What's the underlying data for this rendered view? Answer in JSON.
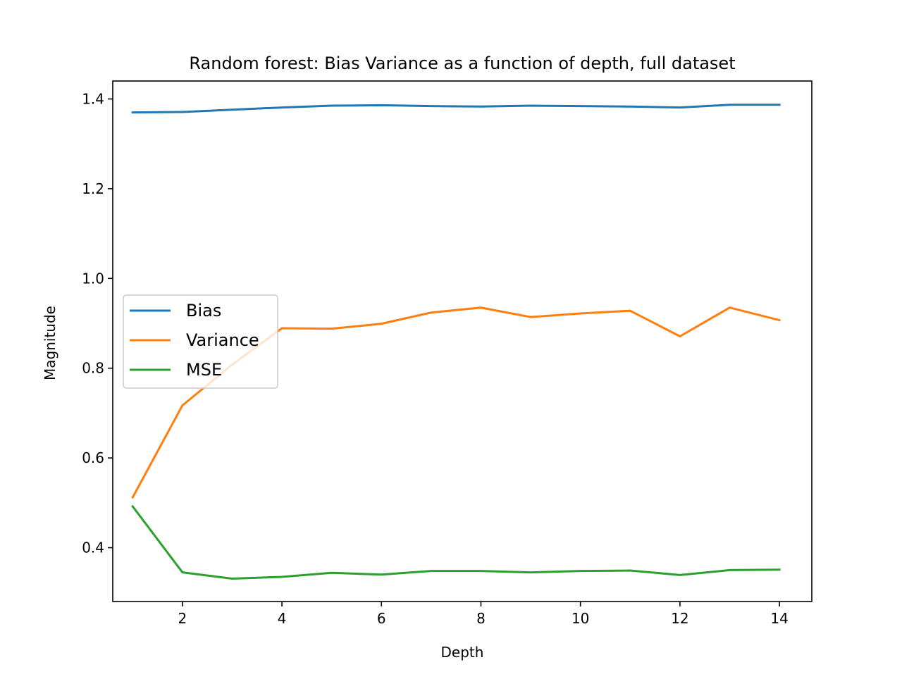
{
  "chart_data": {
    "type": "line",
    "title": "Random forest: Bias Variance as a function of depth, full dataset",
    "xlabel": "Depth",
    "ylabel": "Magnitude",
    "x": [
      1,
      2,
      3,
      4,
      5,
      6,
      7,
      8,
      9,
      10,
      11,
      12,
      13,
      14
    ],
    "xlim": [
      0.6,
      14.65
    ],
    "ylim": [
      0.28,
      1.44
    ],
    "xticks": [
      2,
      4,
      6,
      8,
      10,
      12,
      14
    ],
    "xtick_labels": [
      "2",
      "4",
      "6",
      "8",
      "10",
      "12",
      "14"
    ],
    "yticks": [
      0.4,
      0.6,
      0.8,
      1.0,
      1.2,
      1.4
    ],
    "ytick_labels": [
      "0.4",
      "0.6",
      "0.8",
      "1.0",
      "1.2",
      "1.4"
    ],
    "grid": false,
    "legend_position": "center-left",
    "series": [
      {
        "name": "Bias",
        "color": "#1f77b4",
        "values": [
          1.37,
          1.371,
          1.376,
          1.381,
          1.385,
          1.386,
          1.384,
          1.383,
          1.385,
          1.384,
          1.383,
          1.381,
          1.387,
          1.387
        ]
      },
      {
        "name": "Variance",
        "color": "#ff7f0e",
        "values": [
          0.512,
          0.717,
          0.808,
          0.889,
          0.888,
          0.899,
          0.924,
          0.935,
          0.914,
          0.922,
          0.928,
          0.871,
          0.935,
          0.907
        ]
      },
      {
        "name": "MSE",
        "color": "#2ca02c",
        "values": [
          0.492,
          0.345,
          0.331,
          0.335,
          0.344,
          0.34,
          0.348,
          0.348,
          0.345,
          0.348,
          0.349,
          0.339,
          0.35,
          0.351
        ]
      }
    ]
  }
}
